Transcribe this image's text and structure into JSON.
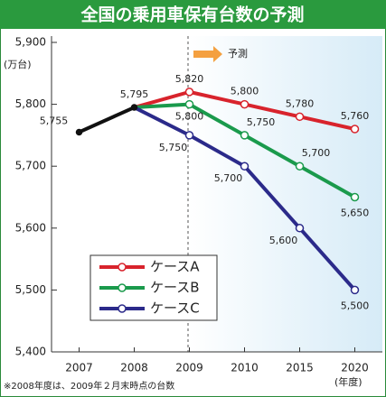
{
  "chart_data": {
    "type": "line",
    "title": "全国の乗用車保有台数の予測",
    "y_axis_label": "(万台)",
    "x_axis_label": "(年度)",
    "annotation": "予測",
    "footnote": "※2008年度は、2009年２月末時点の台数",
    "categories": [
      "2007",
      "2008",
      "2009",
      "2010",
      "2015",
      "2020"
    ],
    "history": {
      "color": "#111111",
      "values": [
        5755,
        5795,
        null,
        null,
        null,
        null
      ],
      "value_labels": [
        "5,755",
        "5,795",
        null,
        null,
        null,
        null
      ]
    },
    "series": [
      {
        "name": "ケースA",
        "color": "#d8232c",
        "values": [
          null,
          5795,
          5820,
          5800,
          5780,
          5760
        ],
        "value_labels": [
          null,
          null,
          "5,820",
          "5,800",
          "5,780",
          "5,760"
        ]
      },
      {
        "name": "ケースB",
        "color": "#1a9a4c",
        "values": [
          null,
          5795,
          5800,
          5750,
          5700,
          5650
        ],
        "value_labels": [
          null,
          null,
          "5,800",
          "5,750",
          "5,700",
          "5,650"
        ]
      },
      {
        "name": "ケースC",
        "color": "#2b2a8a",
        "values": [
          null,
          5795,
          5750,
          5700,
          5600,
          5500
        ],
        "value_labels": [
          null,
          null,
          "5,750",
          "5,700",
          "5,600",
          "5,500"
        ]
      }
    ],
    "ylim": [
      5400,
      5900
    ],
    "yticks": [
      {
        "value": 5400,
        "label": "5,400"
      },
      {
        "value": 5500,
        "label": "5,500"
      },
      {
        "value": 5600,
        "label": "5,600"
      },
      {
        "value": 5700,
        "label": "5,700"
      },
      {
        "value": 5800,
        "label": "5,800"
      },
      {
        "value": 5900,
        "label": "5,900"
      }
    ],
    "grid": false
  }
}
